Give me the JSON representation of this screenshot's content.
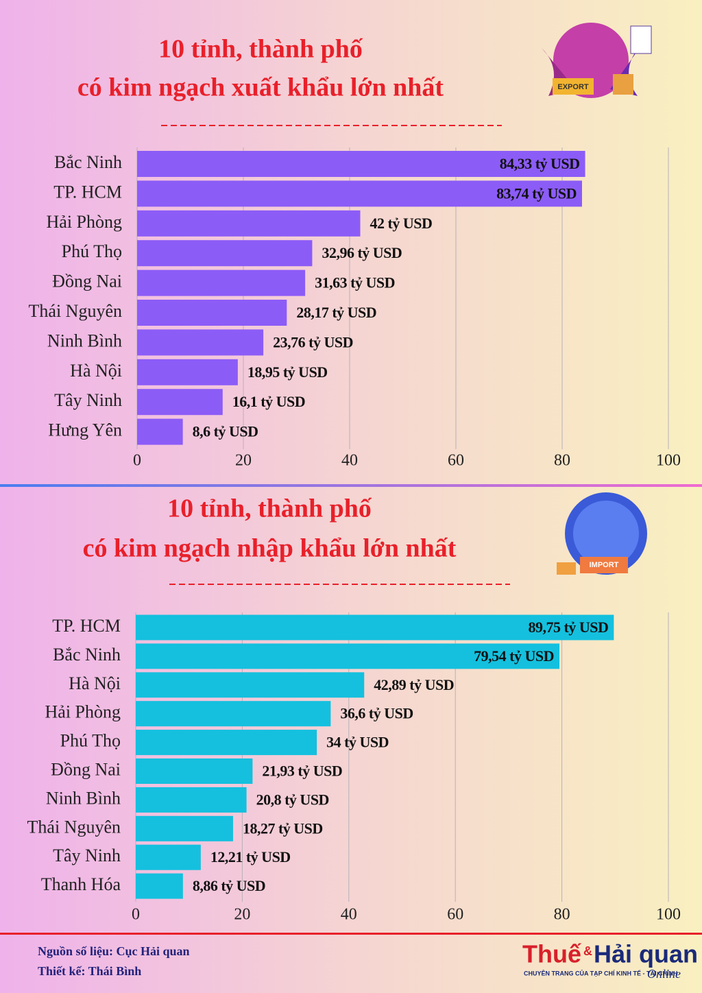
{
  "chart_data": [
    {
      "type": "bar",
      "orientation": "horizontal",
      "title": [
        "10 tỉnh, thành phố",
        "có kim ngạch xuất khẩu lớn nhất"
      ],
      "categories": [
        "Bắc Ninh",
        "TP. HCM",
        "Hải Phòng",
        "Phú Thọ",
        "Đồng Nai",
        "Thái Nguyên",
        "Ninh Bình",
        "Hà Nội",
        "Tây Ninh",
        "Hưng Yên"
      ],
      "values": [
        84.33,
        83.74,
        42,
        32.96,
        31.63,
        28.17,
        23.76,
        18.95,
        16.1,
        8.6
      ],
      "value_labels": [
        "84,33 tỷ USD",
        "83,74 tỷ USD",
        "42 tỷ USD",
        "32,96 tỷ USD",
        "31,63 tỷ USD",
        "28,17 tỷ USD",
        "23,76 tỷ USD",
        "18,95 tỷ USD",
        "16,1 tỷ USD",
        "8,6 tỷ USD"
      ],
      "color": "#8c5cf7",
      "xlim": [
        0,
        100
      ],
      "xticks": [
        0,
        20,
        40,
        60,
        80,
        100
      ],
      "grid": true
    },
    {
      "type": "bar",
      "orientation": "horizontal",
      "title": [
        "10 tỉnh, thành phố",
        "có kim ngạch nhập khẩu lớn nhất"
      ],
      "categories": [
        "TP. HCM",
        "Bắc Ninh",
        "Hà Nội",
        "Hải Phòng",
        "Phú Thọ",
        "Đồng Nai",
        "Ninh Bình",
        "Thái Nguyên",
        "Tây Ninh",
        "Thanh Hóa"
      ],
      "values": [
        89.75,
        79.54,
        42.89,
        36.6,
        34,
        21.93,
        20.8,
        18.27,
        12.21,
        8.86
      ],
      "value_labels": [
        "89,75 tỷ USD",
        "79,54 tỷ USD",
        "42,89 tỷ USD",
        "36,6 tỷ USD",
        "34 tỷ USD",
        "21,93 tỷ USD",
        "20,8 tỷ USD",
        "18,27 tỷ USD",
        "12,21 tỷ USD",
        "8,86 tỷ USD"
      ],
      "color": "#14c0de",
      "xlim": [
        0,
        100
      ],
      "xticks": [
        0,
        20,
        40,
        60,
        80,
        100
      ],
      "grid": true
    }
  ],
  "illustrations": {
    "export": "EXPORT",
    "import": "IMPORT"
  },
  "footer": {
    "source": "Nguồn số liệu: Cục Hải quan",
    "designer": "Thiết kế: Thái Bình"
  },
  "logo": {
    "part1": "Thuế",
    "amp": "&",
    "part2": "Hải quan",
    "tagline": "CHUYÊN TRANG CỦA TẠP CHÍ KINH TẾ - TÀI CHÍNH",
    "online": "Online"
  }
}
